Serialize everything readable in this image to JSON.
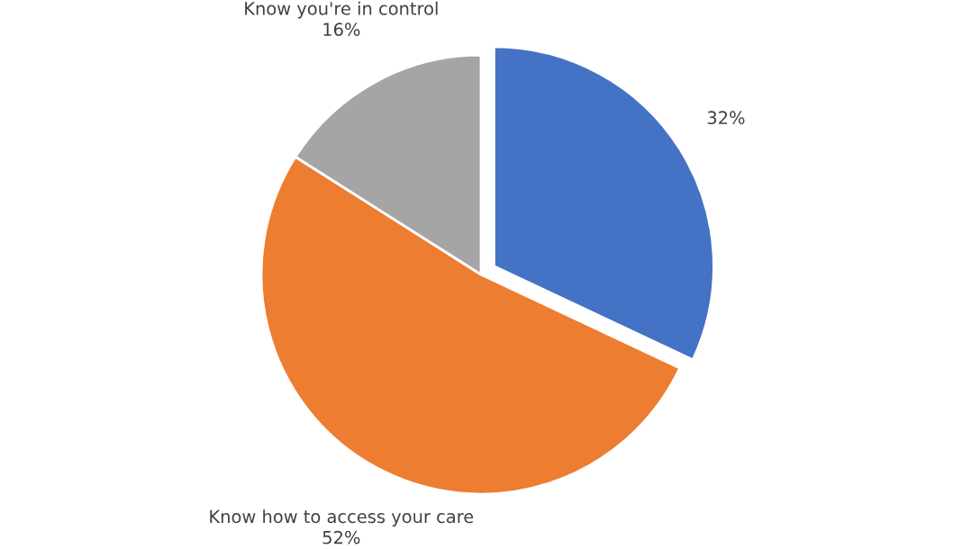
{
  "chart_data": {
    "type": "pie",
    "categories": [
      null,
      "Know how to access your care",
      "Know you're in control"
    ],
    "values": [
      32,
      52,
      16
    ],
    "value_labels": [
      "32%",
      "52%",
      "16%"
    ],
    "colors": [
      "#4472c4",
      "#ed7d31",
      "#a5a5a5"
    ],
    "legend": false
  }
}
